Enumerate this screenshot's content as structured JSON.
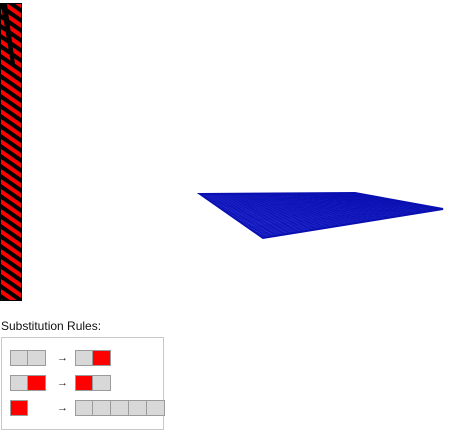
{
  "rules": {
    "title": "Substitution Rules:",
    "arrow_glyph": "→",
    "items": [
      {
        "lhs": [
          "gray",
          "gray"
        ],
        "rhs": [
          "gray",
          "red"
        ]
      },
      {
        "lhs": [
          "gray",
          "red"
        ],
        "rhs": [
          "red",
          "gray"
        ]
      },
      {
        "lhs": [
          "red"
        ],
        "rhs": [
          "gray",
          "gray",
          "gray",
          "gray",
          "gray"
        ]
      }
    ]
  },
  "colors": {
    "cell_gray": "#d8d8d8",
    "cell_red": "#ff0000",
    "mesh_blue": "#0a10b0",
    "strip_black": "#000000"
  }
}
